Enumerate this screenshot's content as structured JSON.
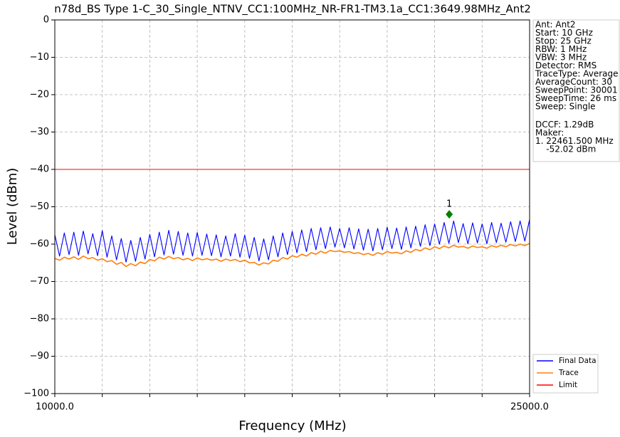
{
  "chart_data": {
    "type": "line",
    "title": "n78d_BS Type 1-C_30_Single_NTNV_CC1:100MHz_NR-FR1-TM3.1a_CC1:3649.98MHz_Ant2",
    "x_label": "Frequency (MHz)",
    "y_label": "Level (dBm)",
    "xlim": [
      10000,
      25000
    ],
    "ylim": [
      -100,
      0
    ],
    "xticks": [
      {
        "value": 10000,
        "label": "10000.0"
      },
      {
        "value": 25000,
        "label": "25000.0"
      }
    ],
    "xminor_ticks": [
      11500,
      13000,
      14500,
      16000,
      17500,
      19000,
      20500,
      22000,
      23500
    ],
    "yticks": [
      {
        "value": -100,
        "label": "−100"
      },
      {
        "value": -90,
        "label": "−90"
      },
      {
        "value": -80,
        "label": "−80"
      },
      {
        "value": -70,
        "label": "−70"
      },
      {
        "value": -60,
        "label": "−60"
      },
      {
        "value": -50,
        "label": "−50"
      },
      {
        "value": -40,
        "label": "−40"
      },
      {
        "value": -30,
        "label": "−30"
      },
      {
        "value": -20,
        "label": "−20"
      },
      {
        "value": -10,
        "label": "−10"
      },
      0
    ],
    "grid": true,
    "legend_loc": "outside lower right",
    "x": [
      10000,
      10150,
      10300,
      10450,
      10600,
      10750,
      10900,
      11050,
      11200,
      11350,
      11500,
      11650,
      11800,
      11950,
      12100,
      12250,
      12400,
      12550,
      12700,
      12850,
      13000,
      13150,
      13300,
      13450,
      13600,
      13750,
      13900,
      14050,
      14200,
      14350,
      14500,
      14650,
      14800,
      14950,
      15100,
      15250,
      15400,
      15550,
      15700,
      15850,
      16000,
      16150,
      16300,
      16450,
      16600,
      16750,
      16900,
      17050,
      17200,
      17350,
      17500,
      17650,
      17800,
      17950,
      18100,
      18250,
      18400,
      18550,
      18700,
      18850,
      19000,
      19150,
      19300,
      19450,
      19600,
      19750,
      19900,
      20050,
      20200,
      20350,
      20500,
      20650,
      20800,
      20950,
      21100,
      21250,
      21400,
      21550,
      21700,
      21850,
      22000,
      22150,
      22300,
      22450,
      22600,
      22750,
      22900,
      23050,
      23200,
      23350,
      23500,
      23650,
      23800,
      23950,
      24100,
      24250,
      24400,
      24550,
      24700,
      24850,
      25000
    ],
    "series": [
      {
        "name": "Final Data",
        "color": "#0000ff",
        "values": [
          -57.5,
          -63.2,
          -57,
          -62.8,
          -56.8,
          -63,
          -56.5,
          -62.6,
          -57.2,
          -63.1,
          -56.4,
          -63.5,
          -57.8,
          -64.2,
          -58.5,
          -64.8,
          -59,
          -64.6,
          -58.2,
          -64,
          -57.4,
          -63.4,
          -56.8,
          -62.9,
          -56.3,
          -62.7,
          -56.6,
          -63,
          -57,
          -63.2,
          -56.9,
          -63,
          -57.3,
          -63.1,
          -57.5,
          -63.4,
          -57.8,
          -63.2,
          -57.2,
          -63.5,
          -57.6,
          -63.8,
          -58.2,
          -64.5,
          -58.6,
          -64.2,
          -57.8,
          -63.4,
          -57,
          -62.8,
          -56.6,
          -62.3,
          -56.2,
          -62,
          -55.8,
          -61.5,
          -55.6,
          -61.2,
          -55.4,
          -60.8,
          -55.8,
          -61,
          -55.6,
          -61.3,
          -55.9,
          -61.6,
          -56,
          -61.8,
          -55.8,
          -61.5,
          -55.5,
          -61.2,
          -55.7,
          -61.4,
          -55.4,
          -61,
          -55.2,
          -60.6,
          -54.8,
          -60.4,
          -54.6,
          -60,
          -54.2,
          -59.8,
          -53.8,
          -59.6,
          -54.5,
          -59.9,
          -54.3,
          -59.7,
          -54.6,
          -59.9,
          -54.2,
          -59.6,
          -54.4,
          -59.5,
          -54,
          -59.3,
          -53.8,
          -59.2,
          -53.4
        ]
      },
      {
        "name": "Trace",
        "color": "#ff7f0e",
        "values": [
          -63.8,
          -64.3,
          -63.5,
          -64,
          -63.4,
          -64.1,
          -63.2,
          -63.9,
          -63.6,
          -64.3,
          -63.9,
          -64.7,
          -64.4,
          -65.4,
          -64.9,
          -66,
          -65.2,
          -65.8,
          -64.8,
          -65.2,
          -64.1,
          -64.5,
          -63.5,
          -64,
          -63.3,
          -63.9,
          -63.6,
          -64.2,
          -63.8,
          -64.4,
          -63.7,
          -64.2,
          -63.9,
          -64.3,
          -64,
          -64.6,
          -64,
          -64.4,
          -64.1,
          -64.7,
          -64.3,
          -65,
          -64.9,
          -65.6,
          -65,
          -65.3,
          -64.3,
          -64.6,
          -63.6,
          -64,
          -63.1,
          -63.5,
          -62.7,
          -63.2,
          -62.3,
          -62.7,
          -61.9,
          -62.4,
          -61.7,
          -62,
          -61.8,
          -62.2,
          -62,
          -62.5,
          -62.3,
          -62.8,
          -62.5,
          -63,
          -62.3,
          -62.7,
          -62,
          -62.4,
          -62.2,
          -62.6,
          -61.8,
          -62.2,
          -61.4,
          -61.8,
          -61,
          -61.5,
          -60.7,
          -61.2,
          -60.5,
          -61,
          -60.3,
          -60.8,
          -60.6,
          -61.1,
          -60.5,
          -60.9,
          -60.7,
          -61.1,
          -60.4,
          -60.8,
          -60.3,
          -60.7,
          -60.1,
          -60.5,
          -60,
          -60.4,
          -59.8
        ]
      },
      {
        "name": "Limit",
        "color": "#ff0000",
        "x": [
          10000,
          25000
        ],
        "values": [
          -40,
          -40
        ]
      }
    ],
    "marker": {
      "label": "1",
      "color": "#008000",
      "x": 22461.5,
      "y": -52.02
    },
    "info_box": {
      "settings": [
        "Ant: Ant2",
        "Start: 10 GHz",
        "Stop: 25 GHz",
        "RBW: 1 MHz",
        "VBW: 3 MHz",
        "Detector: RMS",
        "TraceType: Average",
        "AverageCount: 30",
        "SweepPoint: 30001",
        "SweepTime: 26 ms",
        "Sweep: Single"
      ],
      "marker": [
        "DCCF: 1.29dB",
        "Maker:",
        "1. 22461.500 MHz",
        "    -52.02 dBm"
      ]
    }
  }
}
